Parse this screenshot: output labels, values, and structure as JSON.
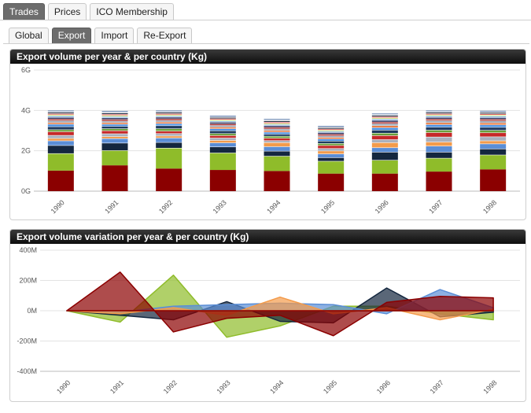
{
  "top_tabs": [
    {
      "label": "Trades",
      "active": true
    },
    {
      "label": "Prices",
      "active": false
    },
    {
      "label": "ICO Membership",
      "active": false
    }
  ],
  "sub_tabs": [
    {
      "label": "Global",
      "active": false
    },
    {
      "label": "Export",
      "active": true
    },
    {
      "label": "Import",
      "active": false
    },
    {
      "label": "Re-Export",
      "active": false
    }
  ],
  "chart_data": [
    {
      "type": "bar",
      "stacked": true,
      "title": "Export volume per year & per country (Kg)",
      "categories": [
        "1990",
        "1991",
        "1992",
        "1993",
        "1994",
        "1995",
        "1996",
        "1997",
        "1998"
      ],
      "yticks": [
        "0G",
        "2G",
        "4G",
        "6G"
      ],
      "ylim": [
        0,
        6
      ],
      "unit": "G",
      "grid": true,
      "series": [
        {
          "color": "#8b0000",
          "values": [
            1.02,
            1.28,
            1.12,
            1.05,
            1.0,
            0.87,
            0.87,
            0.97,
            1.08
          ]
        },
        {
          "color": "#8fbc2a",
          "values": [
            0.83,
            0.72,
            1.0,
            0.83,
            0.72,
            0.6,
            0.65,
            0.65,
            0.7
          ]
        },
        {
          "color": "#14273f",
          "values": [
            0.4,
            0.37,
            0.28,
            0.3,
            0.25,
            0.18,
            0.4,
            0.3,
            0.3
          ]
        },
        {
          "color": "#5b8ed6",
          "values": [
            0.23,
            0.22,
            0.22,
            0.2,
            0.22,
            0.18,
            0.22,
            0.3,
            0.25
          ]
        },
        {
          "color": "#f39b4b",
          "values": [
            0.12,
            0.1,
            0.1,
            0.12,
            0.2,
            0.15,
            0.25,
            0.2,
            0.15
          ]
        },
        {
          "color": "#aab0bd",
          "values": [
            0.15,
            0.14,
            0.12,
            0.12,
            0.1,
            0.12,
            0.15,
            0.25,
            0.2
          ]
        },
        {
          "color": "#c62828",
          "values": [
            0.18,
            0.15,
            0.12,
            0.12,
            0.12,
            0.15,
            0.2,
            0.22,
            0.2
          ]
        },
        {
          "color": "#6aa03a",
          "values": [
            0.1,
            0.1,
            0.12,
            0.1,
            0.1,
            0.1,
            0.12,
            0.12,
            0.12
          ]
        },
        {
          "color": "#1f3a5f",
          "values": [
            0.15,
            0.12,
            0.15,
            0.14,
            0.1,
            0.12,
            0.15,
            0.15,
            0.15
          ]
        },
        {
          "color": "#4a90e2",
          "values": [
            0.12,
            0.1,
            0.1,
            0.1,
            0.1,
            0.1,
            0.12,
            0.12,
            0.12
          ]
        },
        {
          "color": "#e8763a",
          "values": [
            0.08,
            0.08,
            0.08,
            0.08,
            0.08,
            0.08,
            0.1,
            0.1,
            0.1
          ]
        },
        {
          "color": "#9aa1b0",
          "values": [
            0.1,
            0.08,
            0.08,
            0.08,
            0.08,
            0.08,
            0.1,
            0.1,
            0.1
          ]
        },
        {
          "color": "#a52a2a",
          "values": [
            0.08,
            0.08,
            0.08,
            0.08,
            0.08,
            0.08,
            0.08,
            0.08,
            0.08
          ]
        },
        {
          "color": "#2e2e5a",
          "values": [
            0.08,
            0.08,
            0.08,
            0.08,
            0.08,
            0.08,
            0.08,
            0.08,
            0.08
          ]
        },
        {
          "color": "#7fb3e6",
          "values": [
            0.07,
            0.06,
            0.06,
            0.06,
            0.06,
            0.06,
            0.07,
            0.07,
            0.07
          ]
        },
        {
          "color": "#cde07a",
          "values": [
            0.06,
            0.06,
            0.06,
            0.06,
            0.06,
            0.06,
            0.06,
            0.06,
            0.06
          ]
        },
        {
          "color": "#d9534f",
          "values": [
            0.06,
            0.06,
            0.06,
            0.06,
            0.06,
            0.06,
            0.06,
            0.06,
            0.06
          ]
        },
        {
          "color": "#0f1e33",
          "values": [
            0.06,
            0.06,
            0.06,
            0.06,
            0.06,
            0.06,
            0.06,
            0.06,
            0.06
          ]
        },
        {
          "color": "#b0b8c8",
          "values": [
            0.05,
            0.05,
            0.05,
            0.05,
            0.05,
            0.05,
            0.05,
            0.05,
            0.05
          ]
        },
        {
          "color": "#345c9a",
          "values": [
            0.05,
            0.05,
            0.05,
            0.05,
            0.05,
            0.05,
            0.05,
            0.05,
            0.05
          ]
        }
      ]
    },
    {
      "type": "area",
      "title": "Export volume variation per year & per country (Kg)",
      "categories": [
        "1990",
        "1991",
        "1992",
        "1993",
        "1994",
        "1995",
        "1996",
        "1997",
        "1998"
      ],
      "yticks": [
        "-400M",
        "-200M",
        "0M",
        "200M",
        "400M"
      ],
      "ylim": [
        -400,
        400
      ],
      "unit": "M",
      "grid": true,
      "series": [
        {
          "color": "#8fbc2a",
          "values": [
            0,
            -75,
            235,
            -175,
            -100,
            30,
            30,
            -20,
            -60
          ]
        },
        {
          "color": "#14273f",
          "values": [
            0,
            -30,
            -60,
            60,
            -70,
            -80,
            150,
            -40,
            -10
          ]
        },
        {
          "color": "#5b8ed6",
          "values": [
            0,
            -10,
            30,
            40,
            50,
            40,
            -20,
            140,
            20
          ]
        },
        {
          "color": "#f39b4b",
          "values": [
            0,
            -20,
            20,
            -30,
            90,
            -20,
            20,
            -60,
            10
          ]
        },
        {
          "color": "#8b0000",
          "values": [
            0,
            255,
            -140,
            -50,
            -30,
            -165,
            55,
            95,
            85
          ]
        }
      ]
    }
  ]
}
